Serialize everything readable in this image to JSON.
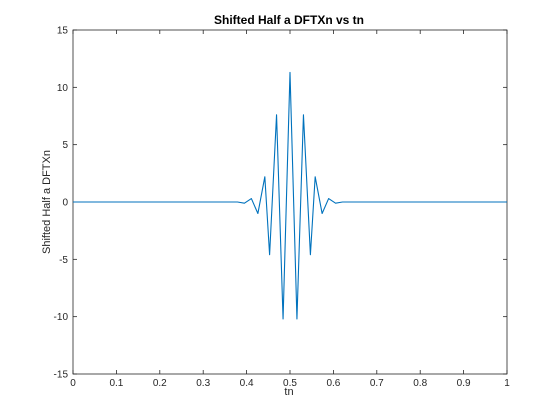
{
  "chart_data": {
    "type": "line",
    "title": "Shifted Half a DFTXn vs tn",
    "xlabel": "tn",
    "ylabel": "Shifted Half a DFTXn",
    "xlim": [
      0,
      1
    ],
    "ylim": [
      -15,
      15
    ],
    "xticks": [
      "0",
      "0.1",
      "0.2",
      "0.3",
      "0.4",
      "0.5",
      "0.6",
      "0.7",
      "0.8",
      "0.9",
      "1"
    ],
    "xtick_values": [
      0,
      0.1,
      0.2,
      0.3,
      0.4,
      0.5,
      0.6,
      0.7,
      0.8,
      0.9,
      1
    ],
    "yticks": [
      "-15",
      "-10",
      "-5",
      "0",
      "5",
      "10",
      "15"
    ],
    "ytick_values": [
      -15,
      -10,
      -5,
      0,
      5,
      10,
      15
    ],
    "grid": false,
    "series": [
      {
        "color": "#0072bd",
        "x": [
          0,
          0.379,
          0.395,
          0.411,
          0.426,
          0.442,
          0.453,
          0.469,
          0.484,
          0.5,
          0.516,
          0.531,
          0.547,
          0.558,
          0.574,
          0.589,
          0.605,
          0.621,
          0.64,
          1
        ],
        "y": [
          0,
          0,
          -0.1,
          0.3,
          -1.0,
          2.2,
          -4.6,
          7.6,
          -10.2,
          11.3,
          -10.2,
          7.6,
          -4.6,
          2.2,
          -1.0,
          0.3,
          -0.1,
          0,
          0,
          0
        ]
      }
    ]
  }
}
